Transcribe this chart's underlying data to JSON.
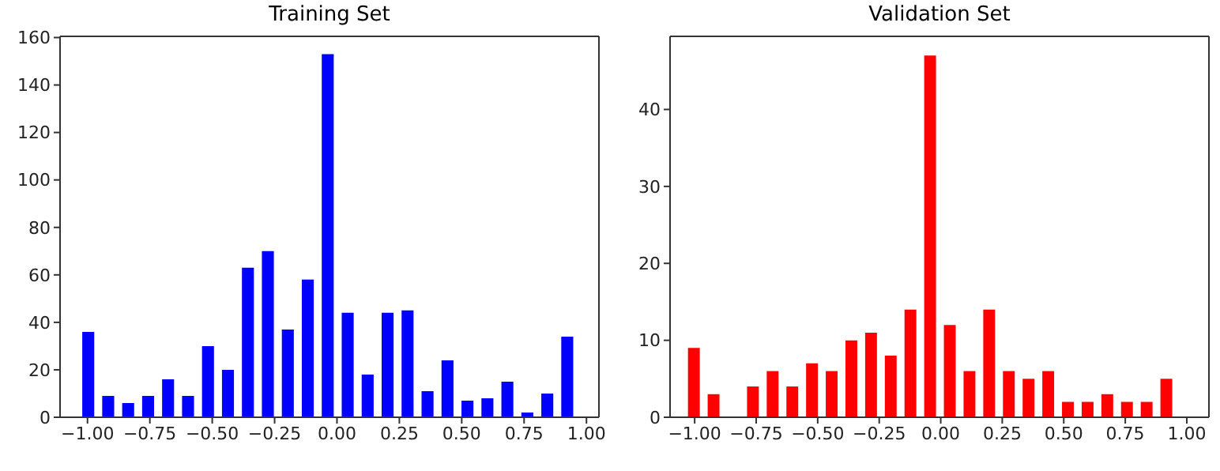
{
  "chart_data": [
    {
      "type": "histogram",
      "title": "Training Set",
      "color": "#0000ff",
      "bins": [
        -1.04,
        -0.96,
        -0.88,
        -0.8,
        -0.72,
        -0.64,
        -0.56,
        -0.48,
        -0.4,
        -0.32,
        -0.24,
        -0.16,
        -0.08,
        0,
        0.08,
        0.16,
        0.24,
        0.32,
        0.4,
        0.48,
        0.56,
        0.64,
        0.72,
        0.8,
        0.88,
        0.96
      ],
      "values": [
        36,
        9,
        6,
        9,
        16,
        9,
        30,
        20,
        63,
        70,
        37,
        58,
        153,
        44,
        18,
        44,
        45,
        11,
        24,
        7,
        8,
        15,
        2,
        10,
        34
      ],
      "xlim": [
        -1.11,
        1.05
      ],
      "ylim": [
        0,
        160.5
      ],
      "xticks": [
        {
          "value": -1,
          "label": "−1.00"
        },
        {
          "value": -0.75,
          "label": "−0.75"
        },
        {
          "value": -0.5,
          "label": "−0.50"
        },
        {
          "value": -0.25,
          "label": "−0.25"
        },
        {
          "value": 0,
          "label": "0.00"
        },
        {
          "value": 0.25,
          "label": "0.25"
        },
        {
          "value": 0.5,
          "label": "0.50"
        },
        {
          "value": 0.75,
          "label": "0.75"
        },
        {
          "value": 1,
          "label": "1.00"
        }
      ],
      "yticks": [
        0,
        20,
        40,
        60,
        80,
        100,
        120,
        140,
        160
      ],
      "grid": false,
      "legend": false
    },
    {
      "type": "histogram",
      "title": "Validation Set",
      "color": "#ff0000",
      "bins": [
        -1.04,
        -0.96,
        -0.88,
        -0.8,
        -0.72,
        -0.64,
        -0.56,
        -0.48,
        -0.4,
        -0.32,
        -0.24,
        -0.16,
        -0.08,
        0,
        0.08,
        0.16,
        0.24,
        0.32,
        0.4,
        0.48,
        0.56,
        0.64,
        0.72,
        0.8,
        0.88,
        0.96
      ],
      "values": [
        9,
        3,
        0,
        4,
        6,
        4,
        7,
        6,
        10,
        11,
        8,
        14,
        47,
        12,
        6,
        14,
        6,
        5,
        6,
        2,
        2,
        3,
        2,
        2,
        5
      ],
      "xlim": [
        -1.1,
        1.09
      ],
      "ylim": [
        0,
        49.5
      ],
      "xticks": [
        {
          "value": -1,
          "label": "−1.00"
        },
        {
          "value": -0.75,
          "label": "−0.75"
        },
        {
          "value": -0.5,
          "label": "−0.50"
        },
        {
          "value": -0.25,
          "label": "−0.25"
        },
        {
          "value": 0,
          "label": "0.00"
        },
        {
          "value": 0.25,
          "label": "0.25"
        },
        {
          "value": 0.5,
          "label": "0.50"
        },
        {
          "value": 0.75,
          "label": "0.75"
        },
        {
          "value": 1,
          "label": "1.00"
        }
      ],
      "yticks": [
        0,
        10,
        20,
        30,
        40
      ],
      "grid": false,
      "legend": false
    }
  ]
}
